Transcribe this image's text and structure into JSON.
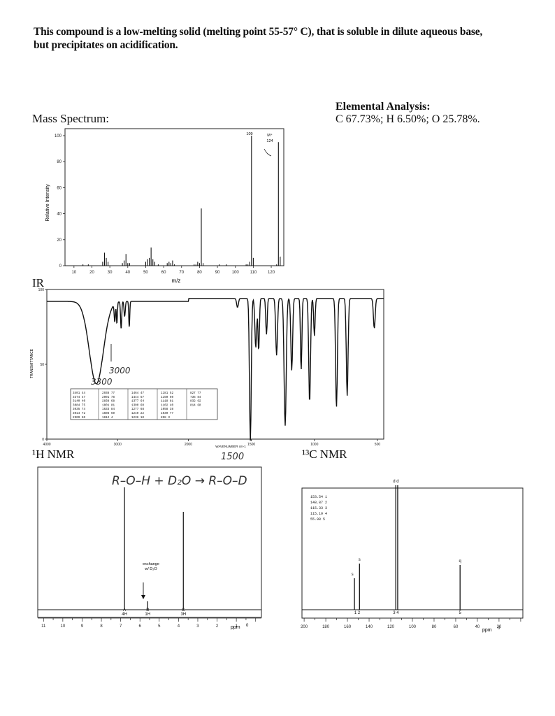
{
  "intro": {
    "line1": "This compound is a low-melting solid (melting point 55-57° C), that is soluble in dilute aqueous base,",
    "line2": "but precipitates on acidification."
  },
  "elemental": {
    "title": "Elemental Analysis:",
    "values": "C 67.73%; H 6.50%; O 25.78%."
  },
  "sections": {
    "mass": "Mass Spectrum:",
    "ir": "IR",
    "hnmr": "¹H NMR",
    "cnmr": "¹³C NMR"
  },
  "ms": {
    "ylabel": "Relative Intensity",
    "xlabel": "m/z",
    "yticks": [
      "100",
      "80",
      "60",
      "40",
      "20",
      "0"
    ],
    "xticks": [
      "10",
      "20",
      "30",
      "40",
      "50",
      "60",
      "70",
      "80",
      "90",
      "100",
      "110",
      "120"
    ],
    "peak_label": "109",
    "mplus_label": "M⁺",
    "mplus_mass": "124"
  },
  "ir": {
    "ylabel": "TRANSMITTANCE",
    "xlabel": "WAVENUMBER cm-1",
    "yticks": [
      "100",
      "50",
      "0"
    ],
    "xticks": [
      "4000",
      "3000",
      "2000",
      "1500",
      "1000",
      "500"
    ],
    "table": [
      [
        "3401 44",
        "3374 47",
        "3140 40",
        "3084 75",
        "3035 74",
        "3014 72",
        "2909 60"
      ],
      [
        "2938 77",
        "2901 78",
        "2838 68",
        "1801 81",
        "1633 84",
        "1608 69",
        "1612 4"
      ],
      [
        "1464 47",
        "1444 57",
        "1377 64",
        "1300 60",
        "1277 68",
        "1240 22",
        "1236 10"
      ],
      [
        "1181 52",
        "1150 60",
        "1118 81",
        "1102 40",
        "1058 38",
        "1039 77",
        "898 3"
      ],
      [
        "827 77",
        "735 84",
        "832 62",
        "814 68"
      ]
    ],
    "hand_3300": "3300",
    "hand_3000": "3000",
    "hand_1500": "1500"
  },
  "hnmr": {
    "reaction": "R–O–H + D₂O → R–O–D",
    "exchange": "exchange\nw/ D₂O",
    "peaks": [
      {
        "label": "A",
        "integ": "4H"
      },
      {
        "label": "B",
        "integ": "1H"
      },
      {
        "label": "C",
        "integ": "3H"
      }
    ],
    "xticks": [
      "11",
      "10",
      "9",
      "8",
      "7",
      "6",
      "5",
      "4",
      "3",
      "2",
      "1"
    ],
    "ppm": "ppm",
    "zero": "0"
  },
  "cnmr": {
    "table": [
      "153.54 1",
      "148.87 2",
      "115.33 3",
      "115.19 4",
      "55.98 5"
    ],
    "mults": [
      "s",
      "s",
      "d d",
      "q"
    ],
    "peak_nums": [
      "1 2",
      "3 4",
      "5"
    ],
    "xticks": [
      "200",
      "180",
      "160",
      "140",
      "120",
      "100",
      "80",
      "60",
      "40",
      "20"
    ],
    "ppm": "ppm",
    "zero": "0"
  }
}
